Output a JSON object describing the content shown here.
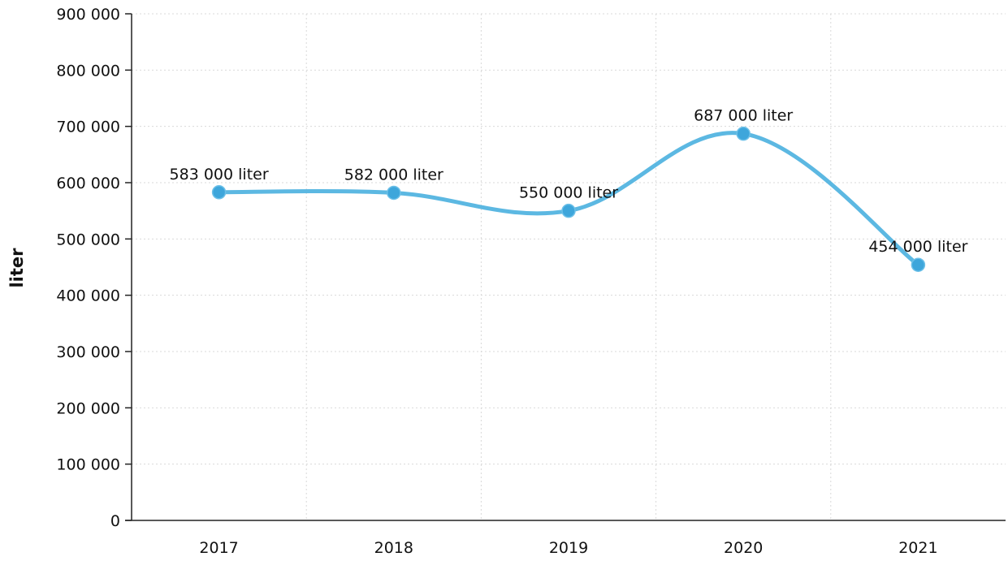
{
  "chart_data": {
    "type": "line",
    "title": "",
    "xlabel": "",
    "ylabel": "liter",
    "categories": [
      "2017",
      "2018",
      "2019",
      "2020",
      "2021"
    ],
    "series": [
      {
        "values": [
          583000,
          582000,
          550000,
          687000,
          454000
        ],
        "data_labels": [
          "583 000 liter",
          "582 000 liter",
          "550 000 liter",
          "687 000 liter",
          "454 000 liter"
        ],
        "color": "#4ab0df"
      }
    ],
    "ylim": [
      0,
      900000
    ],
    "yticks": [
      0,
      100000,
      200000,
      300000,
      400000,
      500000,
      600000,
      700000,
      800000,
      900000
    ],
    "ytick_labels": [
      "0",
      "100 000",
      "200 000",
      "300 000",
      "400 000",
      "500 000",
      "600 000",
      "700 000",
      "800 000",
      "900 000"
    ],
    "grid": true,
    "smooth": true
  }
}
